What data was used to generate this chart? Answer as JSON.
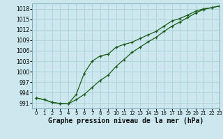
{
  "title": "Graphe pression niveau de la mer (hPa)",
  "bg_color": "#cce8ee",
  "grid_color": "#b0d4dc",
  "line_color": "#1a5c1a",
  "xlim": [
    -0.5,
    23
  ],
  "ylim": [
    989.5,
    1019.5
  ],
  "yticks": [
    991,
    994,
    997,
    1000,
    1003,
    1006,
    1009,
    1012,
    1015,
    1018
  ],
  "xticks": [
    0,
    1,
    2,
    3,
    4,
    5,
    6,
    7,
    8,
    9,
    10,
    11,
    12,
    13,
    14,
    15,
    16,
    17,
    18,
    19,
    20,
    21,
    22,
    23
  ],
  "line1_x": [
    0,
    1,
    2,
    3,
    4,
    5,
    6,
    7,
    8,
    9,
    10,
    11,
    12,
    13,
    14,
    15,
    16,
    17,
    18,
    19,
    20,
    21,
    22,
    23
  ],
  "line1_y": [
    992.5,
    992.0,
    991.2,
    990.9,
    990.8,
    993.5,
    999.5,
    1003.0,
    1004.5,
    1005.0,
    1007.0,
    1007.8,
    1008.4,
    1009.5,
    1010.5,
    1011.5,
    1013.0,
    1014.5,
    1015.2,
    1016.2,
    1017.3,
    1018.0,
    1018.3,
    1018.8
  ],
  "line2_x": [
    0,
    1,
    2,
    3,
    4,
    5,
    6,
    7,
    8,
    9,
    10,
    11,
    12,
    13,
    14,
    15,
    16,
    17,
    18,
    19,
    20,
    21,
    22,
    23
  ],
  "line2_y": [
    992.5,
    992.0,
    991.2,
    990.9,
    990.8,
    992.0,
    993.5,
    995.5,
    997.5,
    999.0,
    1001.5,
    1003.5,
    1005.5,
    1007.0,
    1008.5,
    1009.8,
    1011.5,
    1013.0,
    1014.2,
    1015.5,
    1016.8,
    1017.8,
    1018.3,
    1018.8
  ],
  "tick_fontsize": 5.5,
  "xtick_fontsize": 5.0,
  "title_fontsize": 7.0
}
